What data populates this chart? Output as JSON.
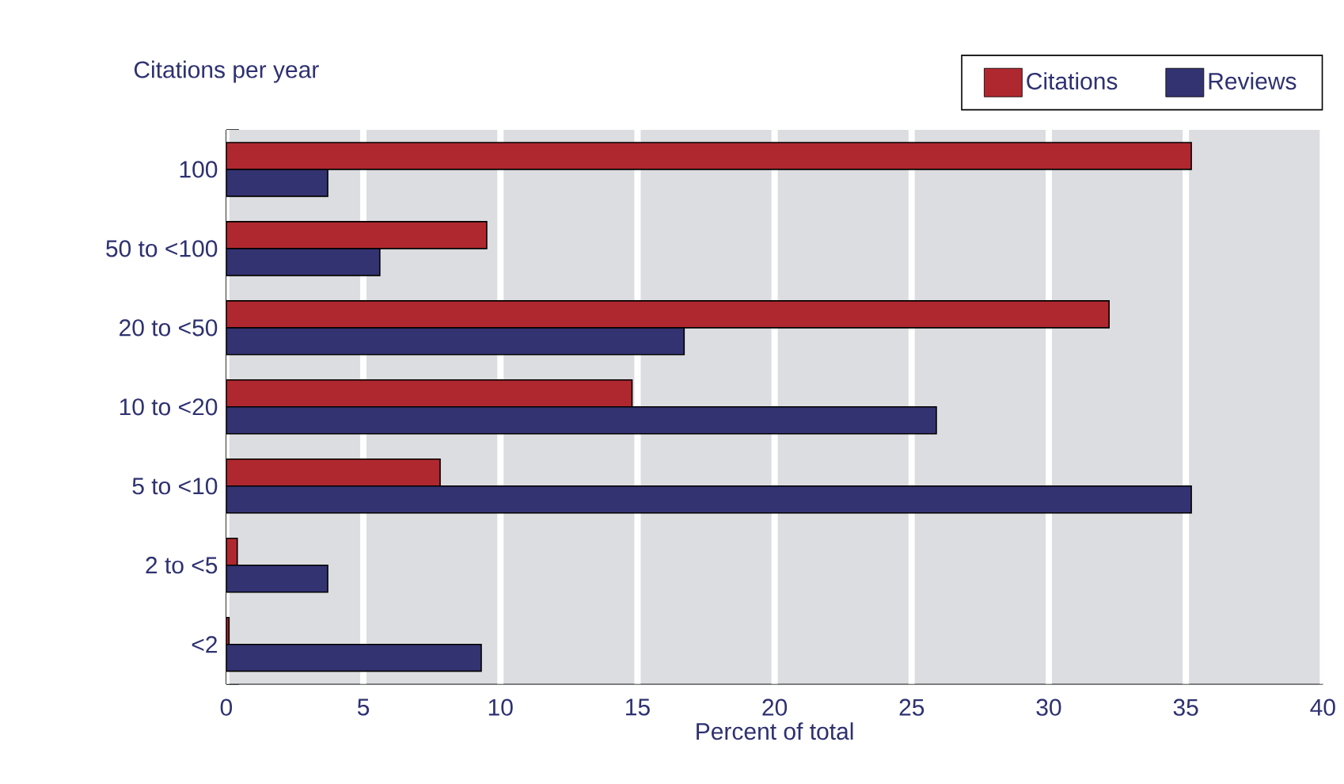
{
  "chart_data": {
    "type": "bar",
    "orientation": "horizontal",
    "ylabel": "Citations per year",
    "xlabel": "Percent of total",
    "categories": [
      "100",
      "50 to <100",
      "20 to <50",
      "10 to <20",
      "5 to <10",
      "2 to <5",
      "<2"
    ],
    "series": [
      {
        "name": "Citations",
        "color": "#b0282f",
        "values": [
          35.2,
          9.5,
          32.2,
          14.8,
          7.8,
          0.4,
          0.1
        ]
      },
      {
        "name": "Reviews",
        "color": "#333372",
        "values": [
          3.7,
          5.6,
          16.7,
          25.9,
          35.2,
          3.7,
          9.3
        ]
      }
    ],
    "xlim": [
      0,
      40
    ],
    "xticks": [
      0,
      5,
      10,
      15,
      20,
      25,
      30,
      35,
      40
    ],
    "grid": "x",
    "legend": "top right"
  }
}
